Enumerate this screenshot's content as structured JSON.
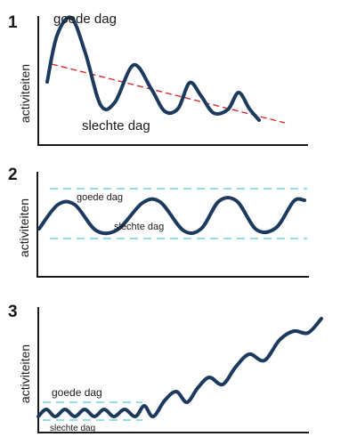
{
  "panels": [
    {
      "number": "1",
      "ylabel": "activiteiten",
      "good_label": "goede dag",
      "bad_label": "slechte dag"
    },
    {
      "number": "2",
      "ylabel": "activiteiten",
      "good_label": "goede dag",
      "bad_label": "slechte dag"
    },
    {
      "number": "3",
      "ylabel": "activiteiten",
      "good_label": "goede dag",
      "bad_label": "slechte dag"
    }
  ],
  "colors": {
    "curve": "#1c3a5e",
    "trend_line": "#d11f27",
    "band_lines": "#5cc6d8",
    "axis": "#1a1a1a"
  }
}
